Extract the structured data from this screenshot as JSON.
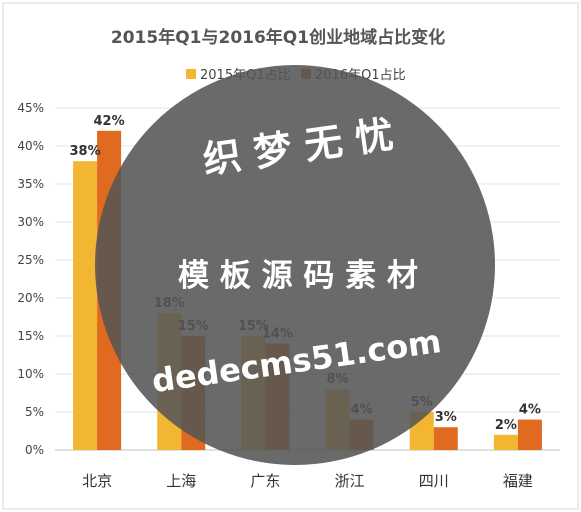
{
  "chart_data": {
    "type": "bar",
    "title": "2015年Q1与2016年Q1创业地域占比变化",
    "categories": [
      "北京",
      "上海",
      "广东",
      "浙江",
      "四川",
      "福建"
    ],
    "series": [
      {
        "name": "2015年Q1占比",
        "values": [
          38,
          18,
          15,
          8,
          5,
          2
        ],
        "labels": [
          "38%",
          "18%",
          "15%",
          "8%",
          "5%",
          "2%"
        ],
        "color": "#f2b632"
      },
      {
        "name": "2016年Q1占比",
        "values": [
          42,
          15,
          14,
          4,
          3,
          4
        ],
        "labels": [
          "42%",
          "15%",
          "14%",
          "4%",
          "3%",
          "4%"
        ],
        "color": "#e06a1f"
      }
    ],
    "y_ticks": [
      "0%",
      "5%",
      "10%",
      "15%",
      "20%",
      "25%",
      "30%",
      "35%",
      "40%",
      "45%"
    ],
    "ylim": [
      0,
      45
    ],
    "grid": true,
    "legend_position": "top"
  },
  "watermark": {
    "line1": "织 梦 无 忧",
    "line2": "模 板 源 码 素 材",
    "line3": "dedecms51.com",
    "circle_color": "#555555"
  }
}
